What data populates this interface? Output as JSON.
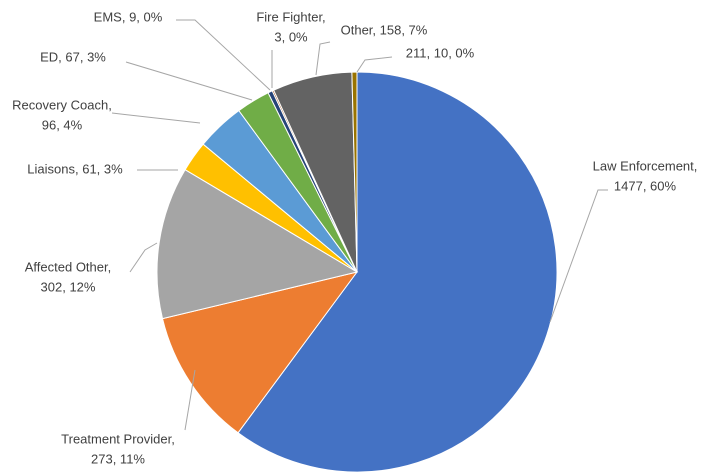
{
  "chart_data": {
    "type": "pie",
    "values": [
      1477,
      273,
      302,
      61,
      96,
      67,
      9,
      3,
      158,
      10
    ],
    "value_labels": [
      [
        "Law Enforcement,",
        "1477, 60%"
      ],
      [
        "Treatment Provider,",
        "273, 11%"
      ],
      [
        "Affected Other,",
        "302, 12%"
      ],
      [
        "Liaisons, 61, 3%"
      ],
      [
        "Recovery Coach,",
        "96, 4%"
      ],
      [
        "ED, 67, 3%"
      ],
      [
        "EMS, 9, 0%"
      ],
      [
        "Fire Fighter,",
        "3, 0%"
      ],
      [
        "Other, 158, 7%"
      ],
      [
        "211, 10, 0%"
      ]
    ],
    "colors": [
      "#4472c4",
      "#ed7d31",
      "#a5a5a5",
      "#ffc000",
      "#5b9bd5",
      "#70ad47",
      "#264478",
      "#9e480e",
      "#636363",
      "#997300"
    ]
  }
}
